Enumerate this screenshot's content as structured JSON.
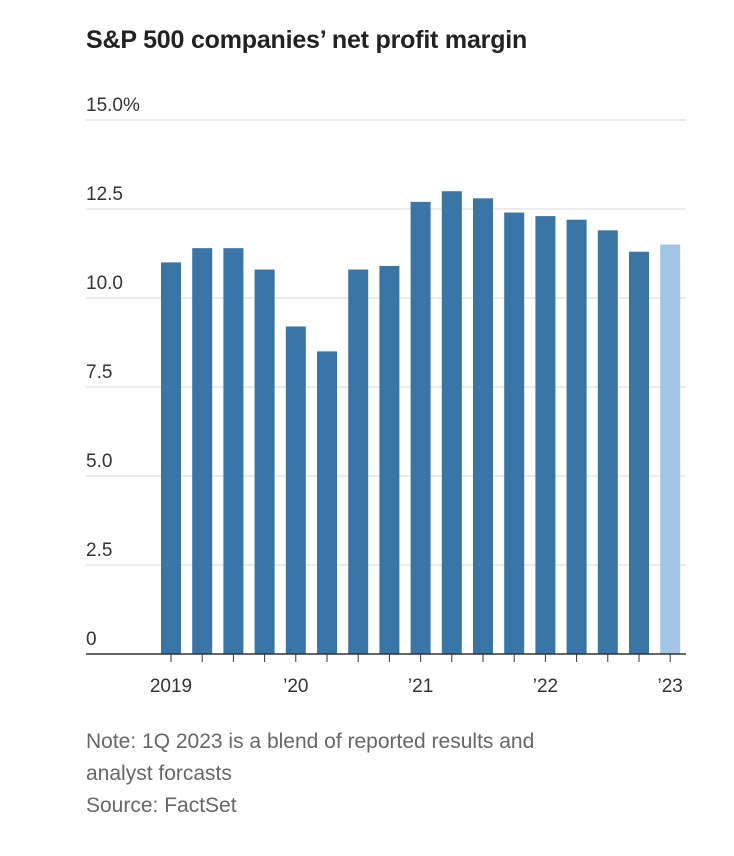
{
  "chart_data": {
    "type": "bar",
    "title": "S&P 500 companies’ net profit margin",
    "categories": [
      "1Q 2019",
      "2Q 2019",
      "3Q 2019",
      "4Q 2019",
      "1Q 2020",
      "2Q 2020",
      "3Q 2020",
      "4Q 2020",
      "1Q 2021",
      "2Q 2021",
      "3Q 2021",
      "4Q 2021",
      "1Q 2022",
      "2Q 2022",
      "3Q 2022",
      "4Q 2022",
      "1Q 2023"
    ],
    "values": [
      11.0,
      11.4,
      11.4,
      10.8,
      9.2,
      8.5,
      10.8,
      10.9,
      12.7,
      13.0,
      12.8,
      12.4,
      12.3,
      12.2,
      11.9,
      11.3,
      11.5
    ],
    "highlight_index": 16,
    "ylim": [
      0,
      15
    ],
    "yticks": [
      {
        "value": 15,
        "label": "15.0%"
      },
      {
        "value": 12.5,
        "label": "12.5"
      },
      {
        "value": 10,
        "label": "10.0"
      },
      {
        "value": 7.5,
        "label": "7.5"
      },
      {
        "value": 5,
        "label": "5.0"
      },
      {
        "value": 2.5,
        "label": "2.5"
      },
      {
        "value": 0,
        "label": "0"
      }
    ],
    "xticks": [
      {
        "index": 0,
        "label": "2019"
      },
      {
        "index": 4,
        "label": "’20"
      },
      {
        "index": 8,
        "label": "’21"
      },
      {
        "index": 12,
        "label": "’22"
      },
      {
        "index": 16,
        "label": "’23"
      }
    ],
    "xlabel": "",
    "ylabel": "",
    "grid": true,
    "colors": {
      "bar": "#3a75a8",
      "highlight": "#a3c6e6",
      "grid": "#d9d9d9",
      "axis": "#333333"
    }
  },
  "notes": {
    "note_line1": "Note: 1Q 2023 is a blend of reported results and",
    "note_line2": "analyst forcasts",
    "source": "Source: FactSet"
  }
}
